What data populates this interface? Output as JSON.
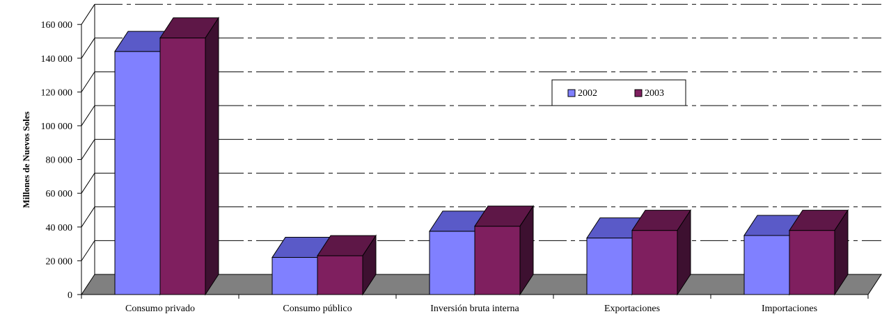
{
  "chart_data": {
    "type": "bar",
    "style": "3d-clustered",
    "title": "",
    "xlabel": "",
    "ylabel": "Millones de Nuevos Soles",
    "ylim": [
      0,
      160000
    ],
    "yticks": [
      0,
      20000,
      40000,
      60000,
      80000,
      100000,
      120000,
      140000,
      160000
    ],
    "ytick_labels": [
      "0",
      "20 000",
      "40 000",
      "60 000",
      "80 000",
      "100 000",
      "120 000",
      "140 000",
      "160 000"
    ],
    "grid": true,
    "legend_position": "top-right (inside plot)",
    "categories": [
      "Consumo privado",
      "Consumo público",
      "Inversión bruta interna",
      "Exportaciones",
      "Importaciones"
    ],
    "series": [
      {
        "name": "2002",
        "values": [
          144000,
          22000,
          37500,
          33500,
          35000
        ],
        "color": "#8080ff",
        "top_color": "#5a5ac8",
        "side_color": "#3a3a8c"
      },
      {
        "name": "2003",
        "values": [
          152000,
          23000,
          40500,
          38000,
          38000
        ],
        "color": "#7f1f5f",
        "top_color": "#5e1747",
        "side_color": "#3d1030"
      }
    ],
    "floor_color": "#808080"
  }
}
